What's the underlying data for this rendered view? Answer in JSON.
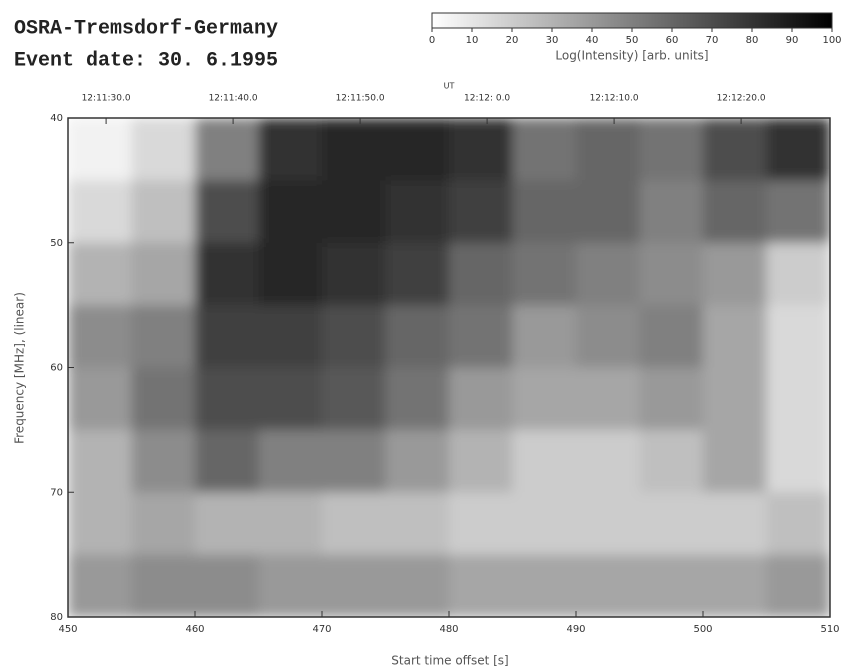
{
  "chart_data": {
    "type": "heatmap",
    "title": "OSRA-Tremsdorf-Germany",
    "subtitle": "Event date: 30. 6.1995",
    "x_label": "Start time offset [s]",
    "y_label": "Frequency [MHz], (linear)",
    "top_axis_label": "UT",
    "colorbar_label": "Log(Intensity) [arb. units]",
    "x_bins": [
      450,
      455,
      460,
      465,
      470,
      475,
      480,
      485,
      490,
      495,
      500,
      505,
      510
    ],
    "y_bins": [
      40,
      45,
      50,
      55,
      60,
      65,
      70,
      75,
      80
    ],
    "z": [
      [
        5,
        15,
        50,
        80,
        85,
        85,
        80,
        55,
        60,
        55,
        70,
        80
      ],
      [
        15,
        25,
        70,
        85,
        85,
        80,
        75,
        60,
        60,
        50,
        60,
        55
      ],
      [
        30,
        35,
        80,
        85,
        80,
        75,
        60,
        55,
        50,
        45,
        40,
        20
      ],
      [
        45,
        50,
        75,
        75,
        70,
        60,
        55,
        40,
        45,
        50,
        35,
        15
      ],
      [
        40,
        55,
        70,
        70,
        65,
        55,
        40,
        35,
        35,
        40,
        35,
        15
      ],
      [
        30,
        45,
        60,
        50,
        50,
        40,
        30,
        20,
        20,
        25,
        35,
        15
      ],
      [
        30,
        35,
        30,
        30,
        25,
        25,
        20,
        20,
        20,
        20,
        20,
        25
      ],
      [
        40,
        45,
        45,
        40,
        40,
        40,
        35,
        35,
        35,
        35,
        35,
        40
      ]
    ],
    "xlim": [
      450,
      510
    ],
    "xticks": [
      450,
      460,
      470,
      480,
      490,
      500,
      510
    ],
    "ylim": [
      40,
      80
    ],
    "y_inverted": true,
    "yticks": [
      40,
      50,
      60,
      70,
      80
    ],
    "top_ticks": [
      {
        "value": 453,
        "label": "12:11:30.0"
      },
      {
        "value": 463,
        "label": "12:11:40.0"
      },
      {
        "value": 473,
        "label": "12:11:50.0"
      },
      {
        "value": 483,
        "label": "12:12: 0.0"
      },
      {
        "value": 493,
        "label": "12:12:10.0"
      },
      {
        "value": 503,
        "label": "12:12:20.0"
      }
    ],
    "clim": [
      0,
      100
    ],
    "cticks": [
      0,
      10,
      20,
      30,
      40,
      50,
      60,
      70,
      80,
      90,
      100
    ]
  }
}
